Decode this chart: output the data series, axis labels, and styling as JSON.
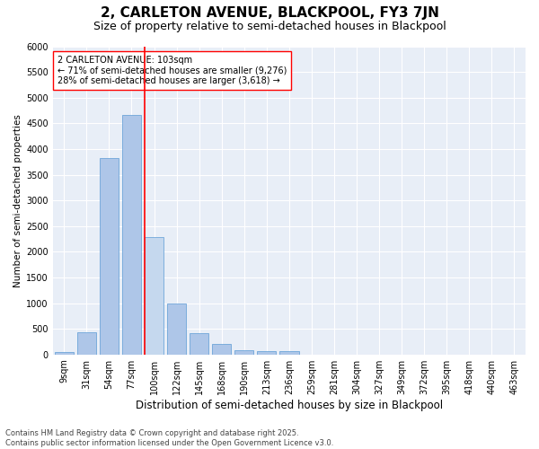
{
  "title": "2, CARLETON AVENUE, BLACKPOOL, FY3 7JN",
  "subtitle": "Size of property relative to semi-detached houses in Blackpool",
  "xlabel": "Distribution of semi-detached houses by size in Blackpool",
  "ylabel": "Number of semi-detached properties",
  "categories": [
    "9sqm",
    "31sqm",
    "54sqm",
    "77sqm",
    "100sqm",
    "122sqm",
    "145sqm",
    "168sqm",
    "190sqm",
    "213sqm",
    "236sqm",
    "259sqm",
    "281sqm",
    "304sqm",
    "327sqm",
    "349sqm",
    "372sqm",
    "395sqm",
    "418sqm",
    "440sqm",
    "463sqm"
  ],
  "values": [
    50,
    440,
    3820,
    4660,
    2280,
    990,
    410,
    200,
    90,
    70,
    65,
    0,
    0,
    0,
    0,
    0,
    0,
    0,
    0,
    0,
    0
  ],
  "bar_color": "#aec6e8",
  "bar_edgecolor": "#5b9bd5",
  "highlight_bar_index": 4,
  "highlight_bar_color": "#c5d8ee",
  "vline_color": "red",
  "annotation_text": "2 CARLETON AVENUE: 103sqm\n← 71% of semi-detached houses are smaller (9,276)\n28% of semi-detached houses are larger (3,618) →",
  "ylim": [
    0,
    6000
  ],
  "yticks": [
    0,
    500,
    1000,
    1500,
    2000,
    2500,
    3000,
    3500,
    4000,
    4500,
    5000,
    5500,
    6000
  ],
  "background_color": "#e8eef7",
  "footer_line1": "Contains HM Land Registry data © Crown copyright and database right 2025.",
  "footer_line2": "Contains public sector information licensed under the Open Government Licence v3.0.",
  "title_fontsize": 11,
  "subtitle_fontsize": 9,
  "xlabel_fontsize": 8.5,
  "ylabel_fontsize": 7.5,
  "tick_fontsize": 7,
  "annotation_fontsize": 7,
  "footer_fontsize": 6
}
